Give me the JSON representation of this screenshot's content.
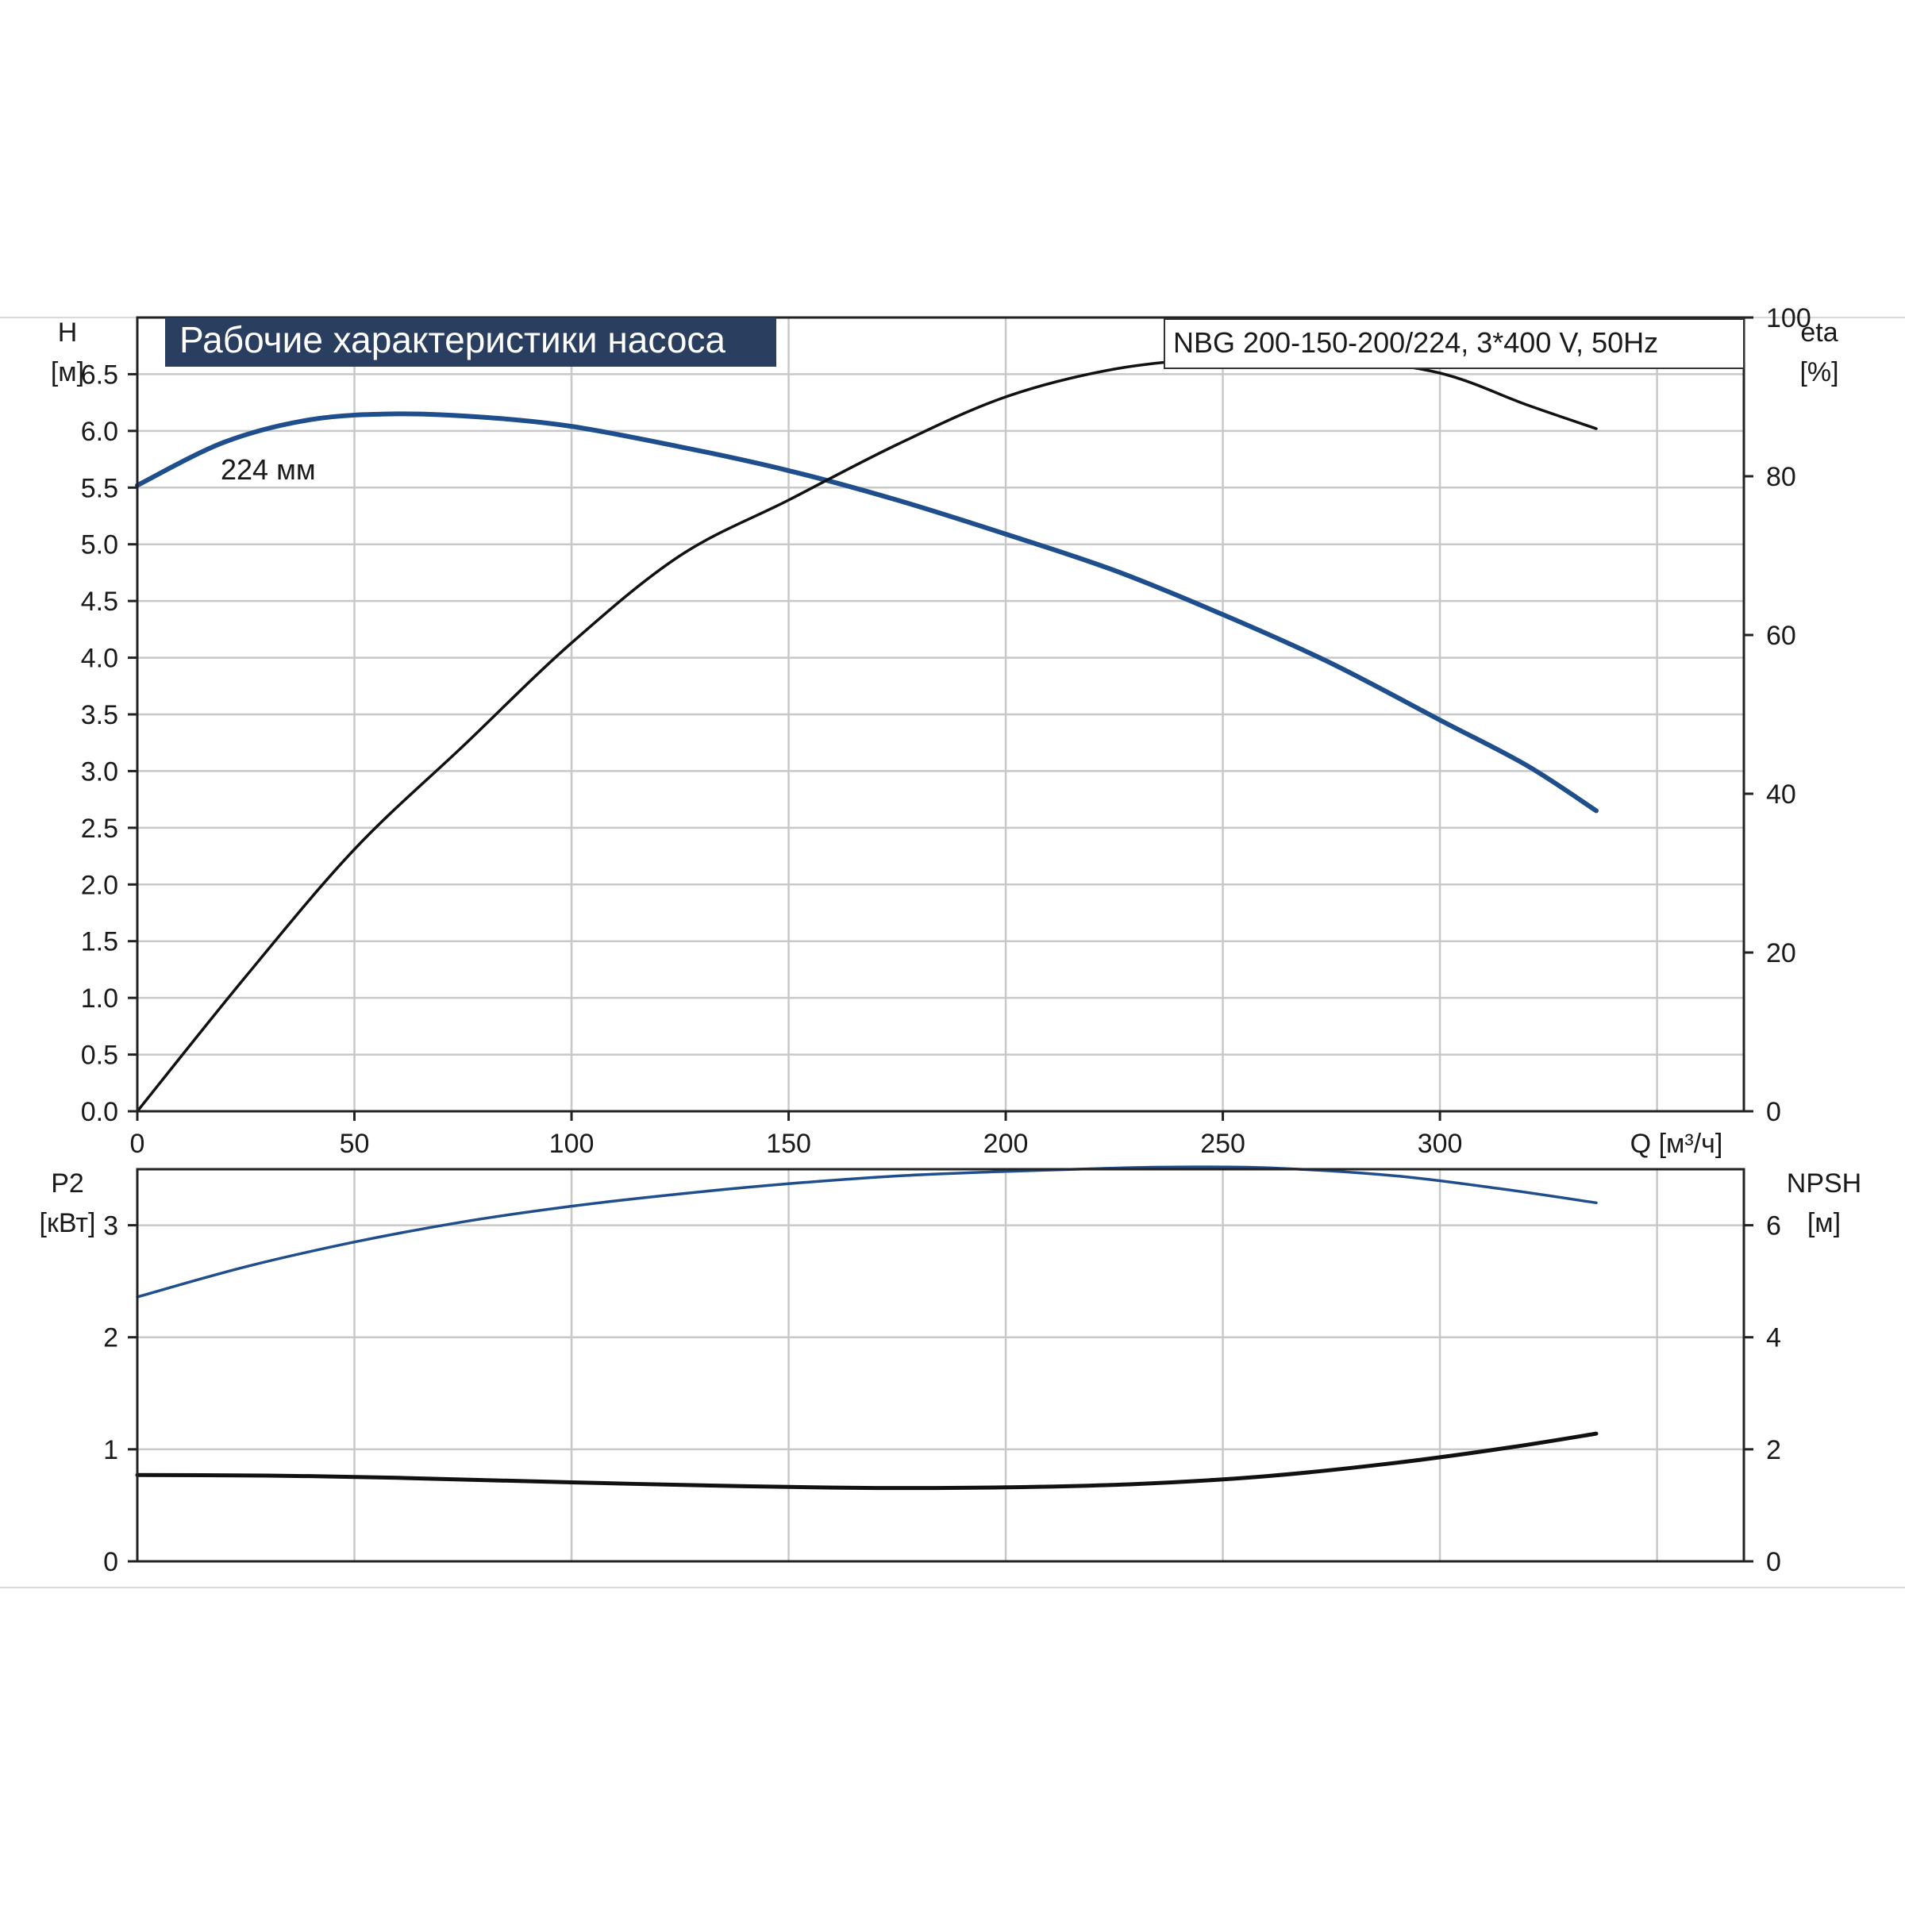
{
  "title": "Рабочие характеристики насоса",
  "model": "NBG 200-150-200/224, 3*400 V, 50Hz",
  "impeller_label": "224 мм",
  "colors": {
    "title_bg": "#2a3f5f",
    "title_text": "#ffffff",
    "blue_curve": "#1f4e8c",
    "black_curve": "#111111"
  },
  "chart_data": [
    {
      "type": "line",
      "x_axis": {
        "label": "Q [м³/ч]",
        "ticks": [
          0,
          50,
          100,
          150,
          200,
          250,
          300
        ],
        "range": [
          0,
          370
        ]
      },
      "y_axis_left": {
        "name": "H",
        "unit": "[м]",
        "ticks": [
          "0.0",
          "0.5",
          "1.0",
          "1.5",
          "2.0",
          "2.5",
          "3.0",
          "3.5",
          "4.0",
          "4.5",
          "5.0",
          "5.5",
          "6.0",
          "6.5"
        ],
        "range": [
          0,
          7.0
        ]
      },
      "y_axis_right": {
        "name": "eta",
        "unit": "[%]",
        "ticks": [
          "0",
          "20",
          "40",
          "60",
          "80",
          "100"
        ],
        "range": [
          0,
          100
        ]
      },
      "grid": true,
      "series": [
        {
          "axis": "left",
          "color": "#1f4e8c",
          "x": [
            0,
            20,
            40,
            60,
            80,
            100,
            125,
            150,
            175,
            200,
            225,
            250,
            275,
            300,
            320,
            336
          ],
          "y": [
            5.52,
            5.9,
            6.1,
            6.15,
            6.12,
            6.04,
            5.86,
            5.65,
            5.39,
            5.09,
            4.77,
            4.38,
            3.95,
            3.45,
            3.05,
            2.65
          ]
        },
        {
          "axis": "right",
          "color": "#111111",
          "x": [
            0,
            25,
            50,
            75,
            100,
            125,
            150,
            175,
            200,
            225,
            250,
            262,
            275,
            300,
            320,
            336
          ],
          "y": [
            0,
            17,
            33,
            46,
            59,
            70,
            77,
            84,
            90,
            93.5,
            95,
            95.3,
            95,
            93,
            89,
            86
          ]
        }
      ]
    },
    {
      "type": "line",
      "x_axis": {
        "range": [
          0,
          370
        ]
      },
      "y_axis_left": {
        "name": "P2",
        "unit": "[кВт]",
        "ticks": [
          "0",
          "1",
          "2",
          "3"
        ],
        "range": [
          0,
          3.5
        ]
      },
      "y_axis_right": {
        "name": "NPSH",
        "unit": "[м]",
        "ticks": [
          "0",
          "2",
          "4",
          "6"
        ],
        "range": [
          0,
          7
        ]
      },
      "grid": true,
      "series": [
        {
          "axis": "left",
          "color": "#1f4e8c",
          "x": [
            0,
            25,
            50,
            75,
            100,
            125,
            150,
            175,
            200,
            225,
            240,
            262,
            290,
            315,
            336
          ],
          "y": [
            2.36,
            2.63,
            2.85,
            3.03,
            3.17,
            3.28,
            3.37,
            3.44,
            3.48,
            3.51,
            3.52,
            3.51,
            3.44,
            3.32,
            3.2
          ]
        },
        {
          "axis": "right",
          "color": "#111111",
          "x": [
            0,
            30,
            60,
            100,
            140,
            170,
            200,
            230,
            260,
            290,
            315,
            336
          ],
          "y": [
            1.54,
            1.53,
            1.49,
            1.41,
            1.34,
            1.31,
            1.32,
            1.38,
            1.52,
            1.76,
            2.02,
            2.28
          ]
        }
      ]
    }
  ]
}
